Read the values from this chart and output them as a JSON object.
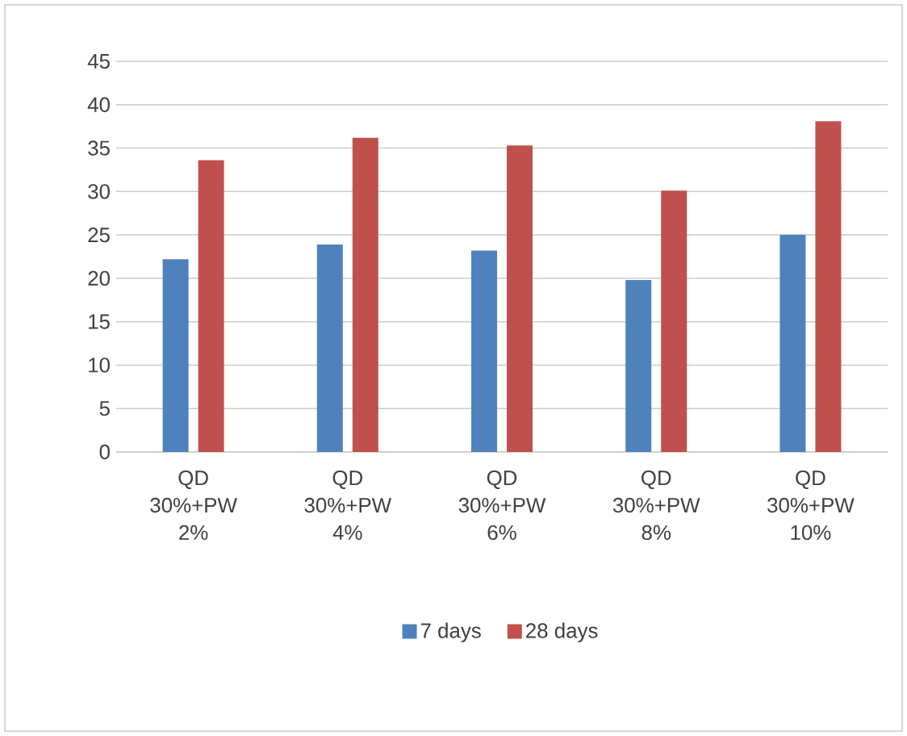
{
  "chart_data": {
    "type": "bar",
    "categories": [
      "QD 30%+PW 2%",
      "QD 30%+PW 4%",
      "QD 30%+PW 6%",
      "QD 30%+PW 8%",
      "QD 30%+PW 10%"
    ],
    "series": [
      {
        "name": "7 days",
        "color": "#4f81bd",
        "values": [
          22.2,
          23.9,
          23.2,
          19.8,
          25.0
        ]
      },
      {
        "name": "28 days",
        "color": "#c0504d",
        "values": [
          33.6,
          36.2,
          35.3,
          30.1,
          38.1
        ]
      }
    ],
    "ylim": [
      0,
      45
    ],
    "yticks": [
      0,
      5,
      10,
      15,
      20,
      25,
      30,
      35,
      40,
      45
    ],
    "grid": "y",
    "legend": "bottom"
  }
}
